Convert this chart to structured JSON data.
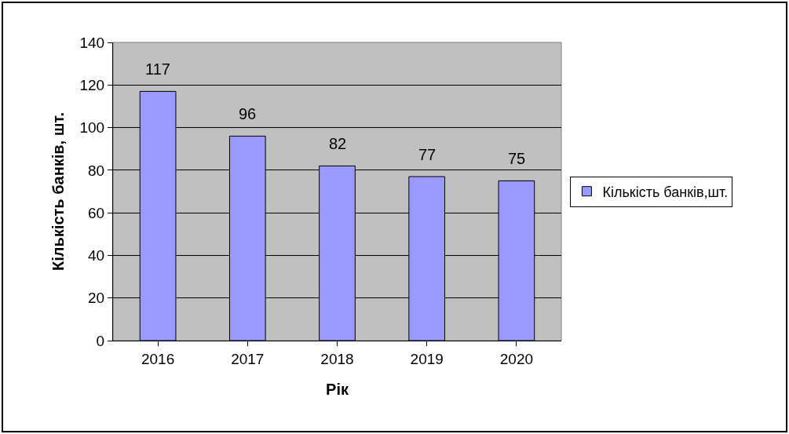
{
  "chart_data": {
    "type": "bar",
    "xlabel": "Рік",
    "ylabel": "Кількість банків, шт.",
    "categories": [
      "2016",
      "2017",
      "2018",
      "2019",
      "2020"
    ],
    "series": [
      {
        "name": "Кількість банків,шт.",
        "color": "#9999ff",
        "values": [
          117,
          96,
          82,
          77,
          75
        ]
      }
    ],
    "ylim": [
      0,
      140
    ],
    "yticks": [
      0,
      20,
      40,
      60,
      80,
      100,
      120,
      140
    ],
    "grid": "y",
    "legend": "right",
    "data_labels": true
  }
}
